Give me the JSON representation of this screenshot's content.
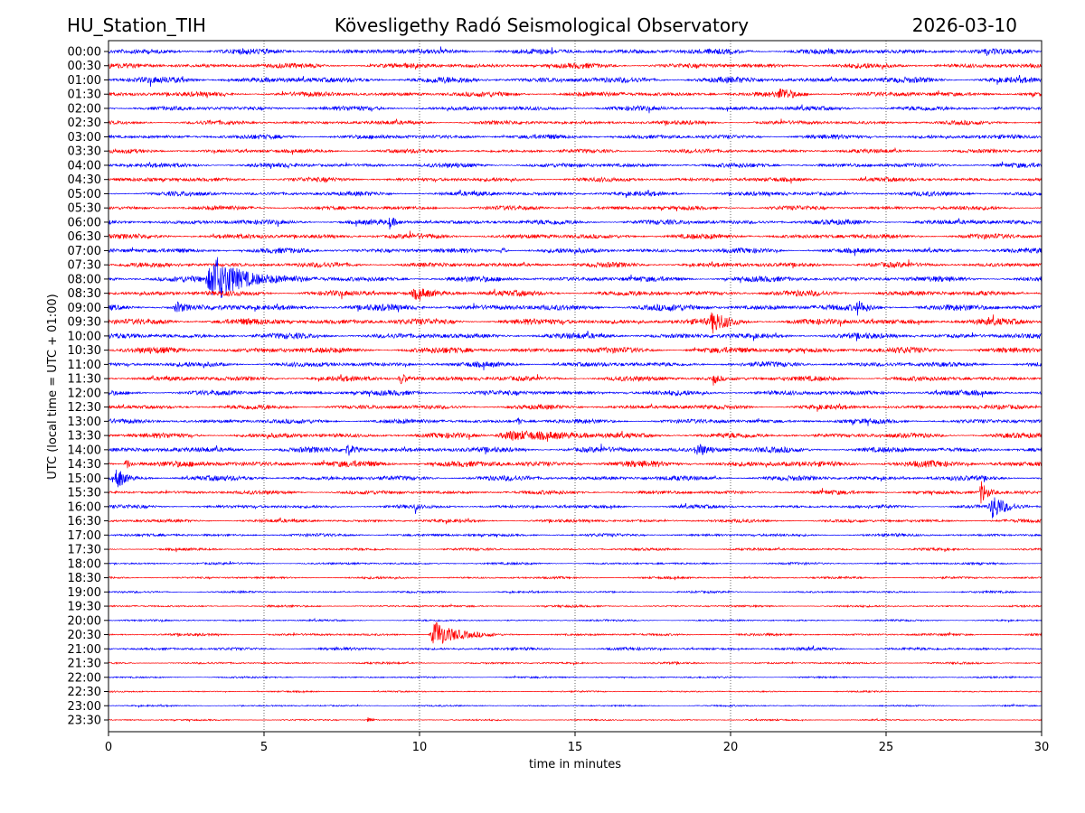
{
  "header": {
    "station": "HU_Station_TIH",
    "observatory": "Kövesligethy Radó Seismological Observatory",
    "date": "2026-03-10"
  },
  "chart_data": {
    "type": "line",
    "title": "Kövesligethy Radó Seismological Observatory",
    "xlabel": "time in minutes",
    "ylabel": "UTC (local time = UTC + 01:00)",
    "xlim": [
      0,
      30
    ],
    "xticks": [
      "0",
      "5",
      "10",
      "15",
      "20",
      "25",
      "30"
    ],
    "xtick_values": [
      0,
      5,
      10,
      15,
      20,
      25,
      30
    ],
    "grid": "vertical dotted at x ticks",
    "row_labels": [
      "00:00",
      "00:30",
      "01:00",
      "01:30",
      "02:00",
      "02:30",
      "03:00",
      "03:30",
      "04:00",
      "04:30",
      "05:00",
      "05:30",
      "06:00",
      "06:30",
      "07:00",
      "07:30",
      "08:00",
      "08:30",
      "09:00",
      "09:30",
      "10:00",
      "10:30",
      "11:00",
      "11:30",
      "12:00",
      "12:30",
      "13:00",
      "13:30",
      "14:00",
      "14:30",
      "15:00",
      "15:30",
      "16:00",
      "16:30",
      "17:00",
      "17:30",
      "18:00",
      "18:30",
      "19:00",
      "19:30",
      "20:00",
      "20:30",
      "21:00",
      "21:30",
      "22:00",
      "22:30",
      "23:00",
      "23:30"
    ],
    "colors": [
      "#0000ff",
      "#ff0000"
    ],
    "noise_level": [
      0.22,
      0.2,
      0.24,
      0.2,
      0.18,
      0.16,
      0.18,
      0.16,
      0.18,
      0.17,
      0.18,
      0.17,
      0.2,
      0.2,
      0.2,
      0.2,
      0.22,
      0.22,
      0.25,
      0.25,
      0.22,
      0.24,
      0.2,
      0.2,
      0.2,
      0.18,
      0.18,
      0.2,
      0.22,
      0.25,
      0.2,
      0.16,
      0.14,
      0.13,
      0.12,
      0.1,
      0.09,
      0.09,
      0.08,
      0.08,
      0.07,
      0.1,
      0.12,
      0.08,
      0.07,
      0.06,
      0.06,
      0.06
    ],
    "events": [
      {
        "row": "01:30",
        "minute": 21.5,
        "amplitude": 0.35,
        "duration": 0.8
      },
      {
        "row": "06:00",
        "minute": 9.0,
        "amplitude": 0.4,
        "duration": 0.3
      },
      {
        "row": "07:00",
        "minute": 12.6,
        "amplitude": 0.45,
        "duration": 0.2
      },
      {
        "row": "08:00",
        "minute": 3.1,
        "amplitude": 1.6,
        "duration": 2.2
      },
      {
        "row": "08:30",
        "minute": 9.7,
        "amplitude": 0.35,
        "duration": 1.2
      },
      {
        "row": "09:00",
        "minute": 2.1,
        "amplitude": 0.4,
        "duration": 0.5
      },
      {
        "row": "09:00",
        "minute": 24.0,
        "amplitude": 0.4,
        "duration": 0.6
      },
      {
        "row": "09:30",
        "minute": 19.3,
        "amplitude": 0.65,
        "duration": 0.9
      },
      {
        "row": "11:30",
        "minute": 9.3,
        "amplitude": 0.4,
        "duration": 0.6
      },
      {
        "row": "11:30",
        "minute": 19.4,
        "amplitude": 0.45,
        "duration": 0.3
      },
      {
        "row": "13:00",
        "minute": 13.1,
        "amplitude": 0.4,
        "duration": 0.2
      },
      {
        "row": "13:30",
        "minute": 12.4,
        "amplitude": 0.35,
        "duration": 3.5
      },
      {
        "row": "14:00",
        "minute": 7.6,
        "amplitude": 0.4,
        "duration": 0.6
      },
      {
        "row": "14:00",
        "minute": 18.8,
        "amplitude": 0.4,
        "duration": 1.0
      },
      {
        "row": "14:30",
        "minute": 0.5,
        "amplitude": 0.45,
        "duration": 0.4
      },
      {
        "row": "15:00",
        "minute": 0.2,
        "amplitude": 0.8,
        "duration": 0.5
      },
      {
        "row": "15:30",
        "minute": 28.0,
        "amplitude": 0.9,
        "duration": 0.4
      },
      {
        "row": "16:00",
        "minute": 9.85,
        "amplitude": 0.5,
        "duration": 0.1
      },
      {
        "row": "16:00",
        "minute": 28.3,
        "amplitude": 0.85,
        "duration": 0.9
      },
      {
        "row": "20:30",
        "minute": 10.3,
        "amplitude": 1.0,
        "duration": 1.4
      },
      {
        "row": "23:30",
        "minute": 8.3,
        "amplitude": 0.25,
        "duration": 0.3
      }
    ]
  }
}
